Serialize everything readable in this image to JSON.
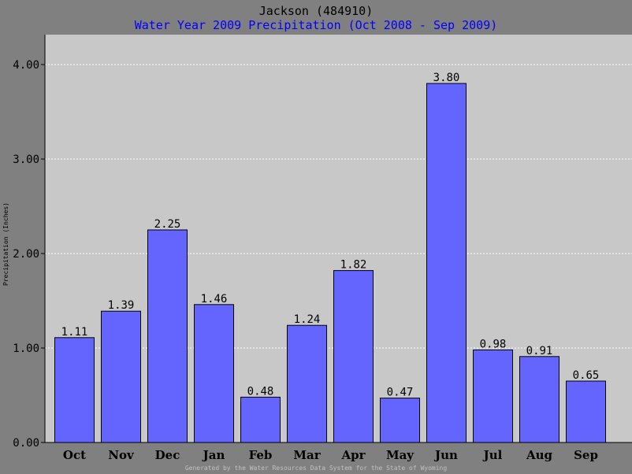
{
  "header": {
    "title": "Jackson (484910)",
    "subtitle": "Water Year 2009 Precipitation (Oct 2008 - Sep 2009)"
  },
  "footer": {
    "text": "Generated by the Water Resources Data System for the State of Wyoming"
  },
  "colors": {
    "background": "#808080",
    "plot_area": "#c8c8c8",
    "bar": "#6464ff",
    "subtitle": "#0000ff"
  },
  "chart_data": {
    "type": "bar",
    "title": "Jackson (484910)",
    "subtitle": "Water Year 2009 Precipitation (Oct 2008 - Sep 2009)",
    "xlabel": "",
    "ylabel": "Precipitation (Inches)",
    "categories": [
      "Oct",
      "Nov",
      "Dec",
      "Jan",
      "Feb",
      "Mar",
      "Apr",
      "May",
      "Jun",
      "Jul",
      "Aug",
      "Sep"
    ],
    "values": [
      1.11,
      1.39,
      2.25,
      1.46,
      0.48,
      1.24,
      1.82,
      0.47,
      3.8,
      0.98,
      0.91,
      0.65
    ],
    "data_labels": [
      "1.11",
      "1.39",
      "2.25",
      "1.46",
      "0.48",
      "1.24",
      "1.82",
      "0.47",
      "3.80",
      "0.98",
      "0.91",
      "0.65"
    ],
    "ylim": [
      0,
      4.0
    ],
    "yticks": [
      0,
      1,
      2,
      3,
      4
    ],
    "ytick_labels": [
      "0.00",
      "1.00",
      "2.00",
      "3.00",
      "4.00"
    ],
    "grid": true,
    "legend": false
  }
}
